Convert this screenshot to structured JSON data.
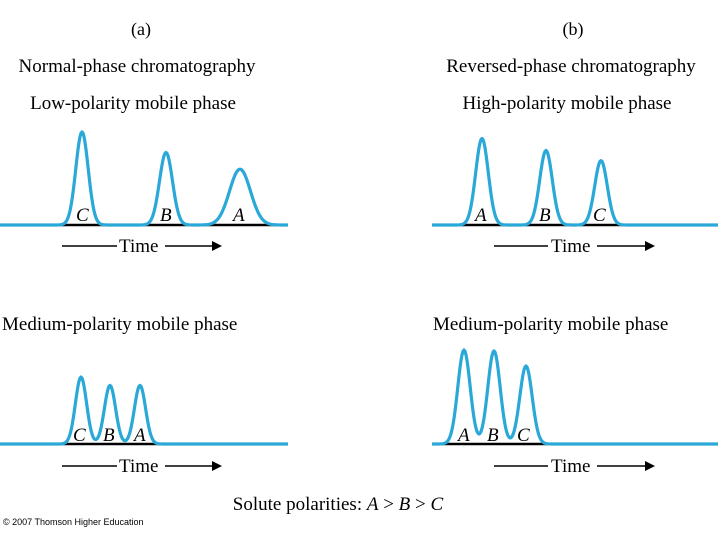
{
  "colors": {
    "curve": "#2aa8d8",
    "baseline": "#000000",
    "text": "#000000"
  },
  "panel_a": {
    "label": "(a)",
    "title": "Normal-phase chromatography",
    "top": {
      "subtitle": "Low-polarity mobile phase",
      "axis_label": "Time",
      "peaks": [
        {
          "label": "C",
          "height": 1.0,
          "width": 1.0
        },
        {
          "label": "B",
          "height": 0.78,
          "width": 1.05
        },
        {
          "label": "A",
          "height": 0.6,
          "width": 1.6
        }
      ]
    },
    "bottom": {
      "subtitle": "Medium-polarity mobile phase",
      "axis_label": "Time",
      "peaks": [
        {
          "label": "C",
          "height": 0.72
        },
        {
          "label": "B",
          "height": 0.63
        },
        {
          "label": "A",
          "height": 0.63
        }
      ]
    }
  },
  "panel_b": {
    "label": "(b)",
    "title": "Reversed-phase chromatography",
    "top": {
      "subtitle": "High-polarity mobile phase",
      "axis_label": "Time",
      "peaks": [
        {
          "label": "A",
          "height": 0.94
        },
        {
          "label": "B",
          "height": 0.81
        },
        {
          "label": "C",
          "height": 0.7
        }
      ]
    },
    "bottom": {
      "subtitle": "Medium-polarity mobile phase",
      "axis_label": "Time",
      "peaks": [
        {
          "label": "A",
          "height": 1.0
        },
        {
          "label": "B",
          "height": 0.99
        },
        {
          "label": "C",
          "height": 0.83
        }
      ]
    }
  },
  "footer": {
    "prefix": "Solute polarities: ",
    "var1": "A",
    "op1": " > ",
    "var2": "B",
    "op2": " > ",
    "var3": "C"
  },
  "copyright": "© 2007 Thomson Higher Education"
}
